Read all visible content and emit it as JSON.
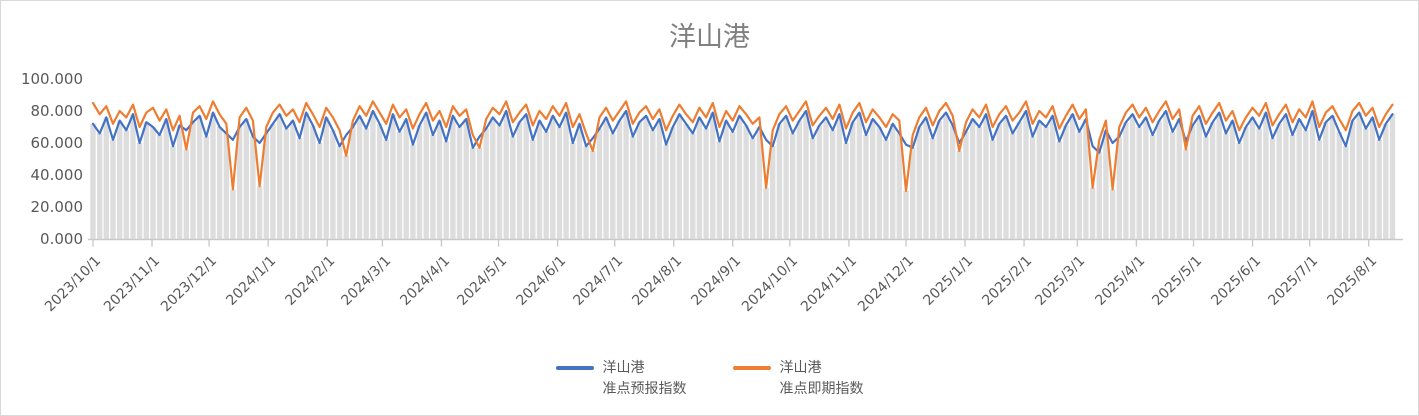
{
  "chart_data": {
    "type": "line",
    "title": "洋山港",
    "grid": "off",
    "legend_position": "bottom",
    "colors": {
      "title_text": "#808080",
      "axis_text": "#595959",
      "axis_line": "#c9c9c9",
      "background_bar": "#dddddd"
    },
    "y_axis": {
      "min": 0,
      "max": 100,
      "tick_values": [
        0,
        20,
        40,
        60,
        80,
        100
      ],
      "tick_labels": [
        "0.000",
        "20.000",
        "40.000",
        "60.000",
        "80.000",
        "100.000"
      ]
    },
    "x_axis": {
      "start_date": "2023/10/1",
      "point_interval_days": 3.5,
      "rotation_degrees": 45,
      "tick_labels": [
        "2023/10/1",
        "2023/11/1",
        "2023/12/1",
        "2024/1/1",
        "2024/2/1",
        "2024/3/1",
        "2024/4/1",
        "2024/5/1",
        "2024/6/1",
        "2024/7/1",
        "2024/8/1",
        "2024/9/1",
        "2024/10/1",
        "2024/11/1",
        "2024/12/1",
        "2025/1/1",
        "2025/2/1",
        "2025/3/1",
        "2025/4/1",
        "2025/5/1",
        "2025/6/1",
        "2025/7/1",
        "2025/8/1"
      ],
      "tick_day_offsets": [
        0,
        31,
        61,
        92,
        123,
        152,
        183,
        213,
        244,
        274,
        305,
        336,
        366,
        397,
        427,
        458,
        489,
        517,
        548,
        578,
        609,
        639,
        670
      ]
    },
    "background_bars": {
      "enabled": true,
      "color": "#dddddd",
      "derivation": "gray columns from 0 up to the lower of the two line series at each point"
    },
    "series": [
      {
        "name": "洋山港准点预报指数",
        "label_line1": "洋山港",
        "label_line2": "准点预报指数",
        "color": "#4472C4",
        "values": [
          72,
          66,
          76,
          62,
          74,
          68,
          78,
          60,
          73,
          70,
          65,
          75,
          58,
          71,
          68,
          73,
          77,
          64,
          79,
          70,
          66,
          62,
          70,
          75,
          64,
          60,
          66,
          72,
          78,
          69,
          74,
          63,
          79,
          71,
          60,
          76,
          68,
          58,
          65,
          70,
          77,
          69,
          80,
          72,
          62,
          78,
          67,
          75,
          59,
          71,
          79,
          65,
          74,
          61,
          77,
          70,
          75,
          57,
          64,
          69,
          76,
          71,
          80,
          64,
          73,
          78,
          62,
          74,
          67,
          77,
          70,
          79,
          60,
          72,
          58,
          63,
          69,
          76,
          66,
          74,
          80,
          64,
          73,
          77,
          68,
          75,
          59,
          70,
          78,
          72,
          66,
          76,
          69,
          79,
          61,
          74,
          67,
          77,
          71,
          63,
          70,
          62,
          58,
          72,
          77,
          66,
          74,
          80,
          63,
          71,
          76,
          68,
          78,
          60,
          73,
          79,
          65,
          75,
          70,
          62,
          72,
          66,
          59,
          57,
          70,
          76,
          63,
          74,
          79,
          71,
          60,
          67,
          75,
          70,
          78,
          62,
          72,
          77,
          66,
          73,
          80,
          64,
          74,
          70,
          77,
          61,
          71,
          78,
          67,
          75,
          58,
          54,
          68,
          60,
          64,
          73,
          78,
          70,
          76,
          65,
          74,
          80,
          67,
          75,
          61,
          71,
          77,
          64,
          73,
          79,
          66,
          74,
          60,
          70,
          76,
          69,
          79,
          63,
          72,
          78,
          65,
          75,
          68,
          80,
          62,
          73,
          77,
          67,
          58,
          74,
          79,
          69,
          76,
          62,
          72,
          78
        ]
      },
      {
        "name": "洋山港准点即期指数",
        "label_line1": "洋山港",
        "label_line2": "准点即期指数",
        "color": "#ED7D31",
        "values": [
          85,
          78,
          83,
          72,
          80,
          76,
          84,
          70,
          79,
          82,
          74,
          81,
          68,
          77,
          56,
          79,
          83,
          75,
          86,
          78,
          72,
          31,
          76,
          82,
          74,
          33,
          70,
          79,
          84,
          77,
          81,
          73,
          85,
          78,
          70,
          82,
          76,
          68,
          52,
          74,
          83,
          77,
          86,
          79,
          72,
          84,
          76,
          81,
          69,
          78,
          85,
          74,
          80,
          70,
          83,
          77,
          81,
          65,
          57,
          75,
          82,
          78,
          86,
          73,
          79,
          84,
          71,
          80,
          75,
          83,
          77,
          85,
          70,
          78,
          66,
          55,
          76,
          82,
          74,
          80,
          86,
          72,
          79,
          83,
          75,
          81,
          68,
          77,
          84,
          78,
          73,
          82,
          76,
          85,
          70,
          80,
          74,
          83,
          78,
          72,
          76,
          32,
          68,
          78,
          83,
          74,
          80,
          86,
          71,
          77,
          82,
          75,
          84,
          69,
          79,
          85,
          73,
          81,
          76,
          70,
          78,
          74,
          30,
          65,
          76,
          82,
          71,
          80,
          85,
          77,
          55,
          73,
          81,
          76,
          84,
          70,
          78,
          83,
          74,
          79,
          86,
          72,
          80,
          76,
          83,
          69,
          77,
          84,
          75,
          81,
          32,
          62,
          74,
          31,
          70,
          79,
          84,
          76,
          82,
          73,
          80,
          86,
          75,
          81,
          56,
          77,
          83,
          72,
          79,
          85,
          74,
          80,
          68,
          76,
          82,
          77,
          85,
          71,
          78,
          84,
          73,
          81,
          76,
          86,
          70,
          79,
          83,
          75,
          68,
          80,
          85,
          77,
          82,
          70,
          78,
          84
        ]
      }
    ]
  }
}
